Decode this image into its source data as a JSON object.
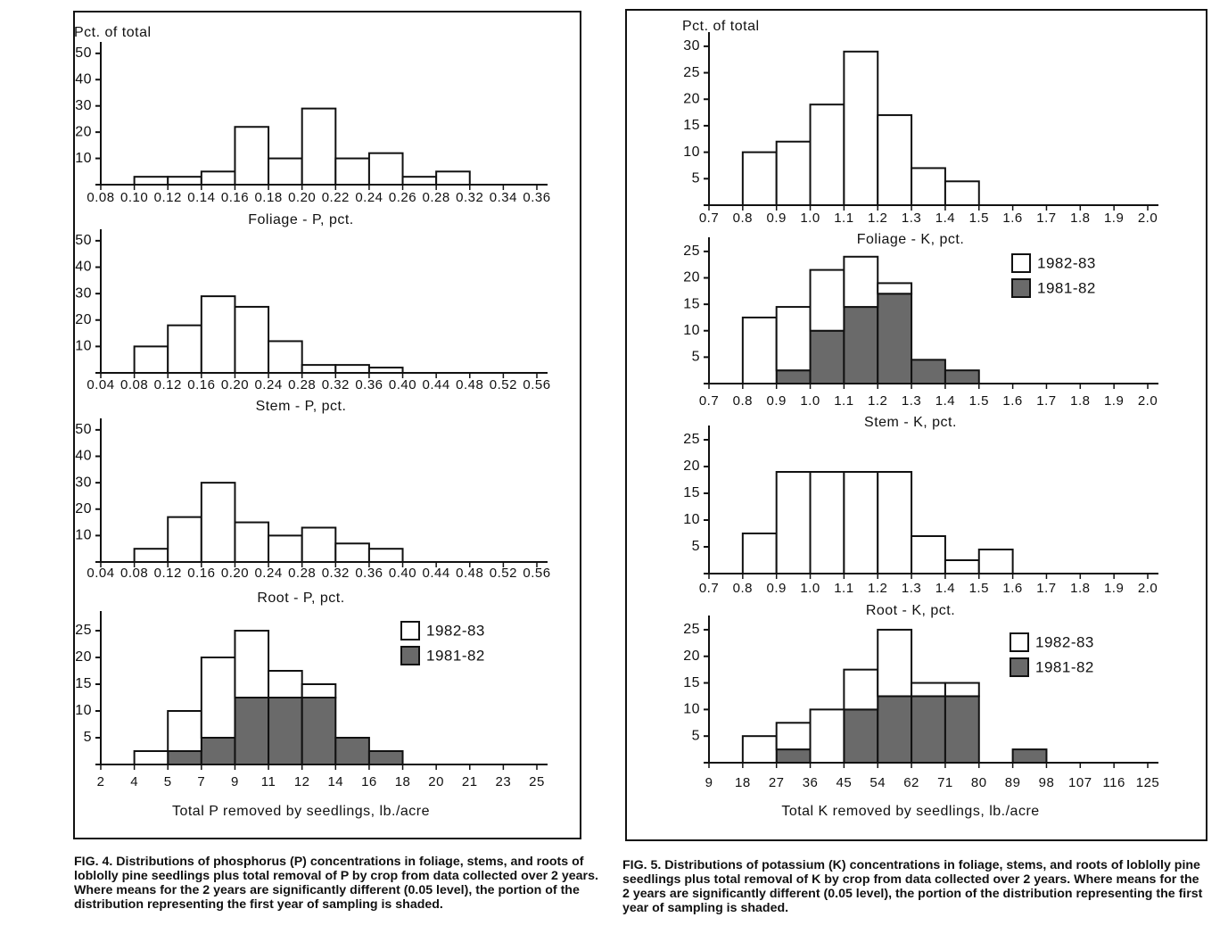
{
  "chart_data": [
    {
      "type": "histogram",
      "ylabel": "Pct. of total",
      "xlabel": "Foliage - P, pct.",
      "bins": [
        "0.08",
        "0.10",
        "0.12",
        "0.14",
        "0.16",
        "0.18",
        "0.20",
        "0.22",
        "0.24",
        "0.26",
        "0.28",
        "0.32",
        "0.34",
        "0.36"
      ],
      "values": [
        0,
        3,
        3,
        5,
        22,
        10,
        29,
        10,
        12,
        3,
        5,
        0,
        0
      ],
      "color": "#ffffff",
      "ylim": [
        0,
        53
      ],
      "yticks": [
        10,
        20,
        30,
        40,
        50
      ]
    },
    {
      "type": "histogram",
      "xlabel": "Stem - P, pct.",
      "bins": [
        "0.04",
        "0.08",
        "0.12",
        "0.16",
        "0.20",
        "0.24",
        "0.28",
        "0.32",
        "0.36",
        "0.40",
        "0.44",
        "0.48",
        "0.52",
        "0.56"
      ],
      "values": [
        0,
        10,
        18,
        29,
        25,
        12,
        3,
        3,
        2,
        0,
        0,
        0,
        0
      ],
      "color": "#ffffff",
      "ylim": [
        0,
        53
      ],
      "yticks": [
        10,
        20,
        30,
        40,
        50
      ]
    },
    {
      "type": "histogram",
      "xlabel": "Root - P, pct.",
      "bins": [
        "0.04",
        "0.08",
        "0.12",
        "0.16",
        "0.20",
        "0.24",
        "0.28",
        "0.32",
        "0.36",
        "0.40",
        "0.44",
        "0.48",
        "0.52",
        "0.56"
      ],
      "values": [
        0,
        5,
        17,
        30,
        15,
        10,
        13,
        7,
        5,
        0,
        0,
        0,
        0
      ],
      "color": "#ffffff",
      "ylim": [
        0,
        53
      ],
      "yticks": [
        10,
        20,
        30,
        40,
        50
      ]
    },
    {
      "type": "stacked-histogram",
      "xlabel": "Total P removed by seedlings, lb./acre",
      "bins": [
        "2",
        "4",
        "5",
        "7",
        "9",
        "11",
        "12",
        "14",
        "16",
        "18",
        "20",
        "21",
        "23",
        "25"
      ],
      "series": [
        {
          "name": "1981-82",
          "color": "#6a6a6a",
          "values": [
            0,
            0,
            2.5,
            5,
            12.5,
            12.5,
            12.5,
            5,
            2.5,
            0,
            0,
            0,
            0
          ]
        },
        {
          "name": "1982-83",
          "color": "#ffffff",
          "values": [
            0,
            2.5,
            7.5,
            15,
            12.5,
            5,
            2.5,
            0,
            0,
            0,
            0,
            0,
            0
          ]
        }
      ],
      "legend": "upper right",
      "ylim": [
        0,
        28
      ],
      "yticks": [
        5,
        10,
        15,
        20,
        25
      ]
    },
    {
      "type": "histogram",
      "ylabel": "Pct. of total",
      "xlabel": "Foliage - K, pct.",
      "bins": [
        "0.7",
        "0.8",
        "0.9",
        "1.0",
        "1.1",
        "1.2",
        "1.3",
        "1.4",
        "1.5",
        "1.6",
        "1.7",
        "1.8",
        "1.9",
        "2.0"
      ],
      "values": [
        0,
        10,
        12,
        19,
        29,
        17,
        7,
        4.5,
        0,
        0,
        0,
        0,
        0
      ],
      "color": "#ffffff",
      "ylim": [
        0,
        32
      ],
      "yticks": [
        5,
        10,
        15,
        20,
        25,
        30
      ]
    },
    {
      "type": "stacked-histogram",
      "xlabel": "Stem - K, pct.",
      "bins": [
        "0.7",
        "0.8",
        "0.9",
        "1.0",
        "1.1",
        "1.2",
        "1.3",
        "1.4",
        "1.5",
        "1.6",
        "1.7",
        "1.8",
        "1.9",
        "2.0"
      ],
      "series": [
        {
          "name": "1981-82",
          "color": "#6a6a6a",
          "values": [
            0,
            0,
            2.5,
            10,
            14.5,
            17,
            4.5,
            2.5,
            0,
            0,
            0,
            0,
            0
          ]
        },
        {
          "name": "1982-83",
          "color": "#ffffff",
          "values": [
            0,
            12.5,
            12,
            11.5,
            9.5,
            2,
            0,
            0,
            0,
            0,
            0,
            0,
            0
          ]
        }
      ],
      "legend": "upper right",
      "ylim": [
        0,
        27
      ],
      "yticks": [
        5,
        10,
        15,
        20,
        25
      ]
    },
    {
      "type": "histogram",
      "xlabel": "Root - K, pct.",
      "bins": [
        "0.7",
        "0.8",
        "0.9",
        "1.0",
        "1.1",
        "1.2",
        "1.3",
        "1.4",
        "1.5",
        "1.6",
        "1.7",
        "1.8",
        "1.9",
        "2.0"
      ],
      "values": [
        0,
        7.5,
        19,
        19,
        19,
        19,
        7,
        2.5,
        4.5,
        0,
        0,
        0,
        0
      ],
      "color": "#ffffff",
      "ylim": [
        0,
        27
      ],
      "yticks": [
        5,
        10,
        15,
        20,
        25
      ]
    },
    {
      "type": "stacked-histogram",
      "xlabel": "Total K removed by seedlings, lb./acre",
      "bins": [
        "9",
        "18",
        "27",
        "36",
        "45",
        "54",
        "62",
        "71",
        "80",
        "89",
        "98",
        "107",
        "116",
        "125"
      ],
      "series": [
        {
          "name": "1981-82",
          "color": "#6a6a6a",
          "values": [
            0,
            0,
            2.5,
            0,
            10,
            12.5,
            12.5,
            12.5,
            0,
            2.5,
            0,
            0,
            0
          ]
        },
        {
          "name": "1982-83",
          "color": "#ffffff",
          "values": [
            0,
            5,
            5,
            10,
            7.5,
            12.5,
            2.5,
            2.5,
            0,
            0,
            0,
            0,
            0
          ]
        }
      ],
      "legend": "upper right",
      "ylim": [
        0,
        27
      ],
      "yticks": [
        5,
        10,
        15,
        20,
        25
      ]
    }
  ],
  "captions": [
    "FIG. 4. Distributions of phosphorus (P) concentrations in foliage, stems, and roots of loblolly pine seedlings plus total removal of P by crop from data collected over 2 years. Where means for the 2 years are significantly different (0.05 level), the portion of the distribution representing the first year of sampling is shaded.",
    "FIG. 5. Distributions of potassium (K) concentrations in foliage, stems, and roots of loblolly pine seedlings plus total removal of K by crop from data collected over 2 years. Where means for the 2 years are significantly different (0.05 level), the portion of the distribution representing the first year of sampling is shaded."
  ]
}
